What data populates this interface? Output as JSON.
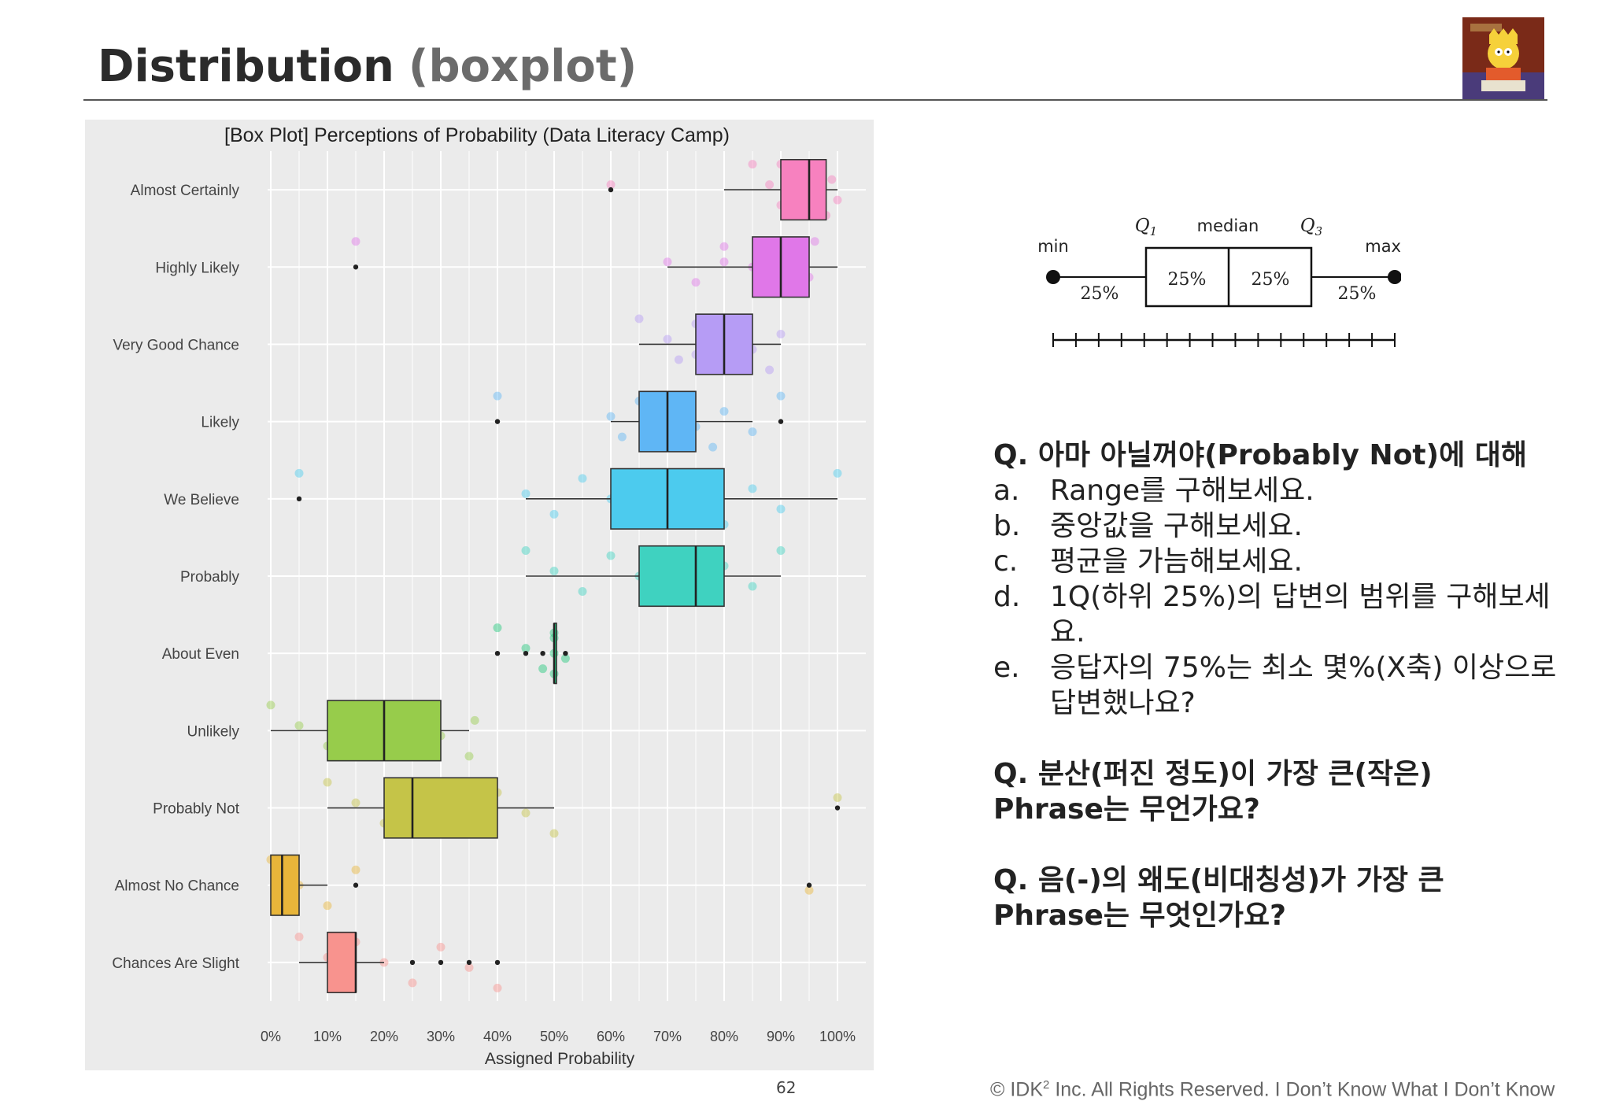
{
  "slide": {
    "title": "Distribution",
    "subtitle": "(boxplot)",
    "page_number": "62",
    "footer_prefix": "© IDK",
    "footer_sup": "2",
    "footer_suffix": " Inc. All Rights Reserved.  I Don’t Know What I Don’t Know"
  },
  "chart_data": {
    "type": "boxplot",
    "title": "[Box Plot] Perceptions of Probability (Data Literacy Camp)",
    "xlabel": "Assigned Probability",
    "ylabel": "",
    "xlim": [
      0,
      100
    ],
    "x_ticks": [
      "0%",
      "10%",
      "20%",
      "30%",
      "40%",
      "50%",
      "60%",
      "70%",
      "80%",
      "90%",
      "100%"
    ],
    "grid": true,
    "legend": "none",
    "categories": [
      {
        "name": "Almost Certainly",
        "color": "#f781bf",
        "whisker_low": 80,
        "q1": 90,
        "median": 95,
        "q3": 98,
        "whisker_high": 100,
        "outliers": [
          60
        ],
        "points": [
          85,
          88,
          90,
          92,
          94,
          95,
          96,
          97,
          98,
          99,
          100,
          90,
          60
        ]
      },
      {
        "name": "Highly Likely",
        "color": "#e077e8",
        "whisker_low": 70,
        "q1": 85,
        "median": 90,
        "q3": 95,
        "whisker_high": 100,
        "outliers": [
          15
        ],
        "points": [
          15,
          70,
          75,
          80,
          85,
          86,
          88,
          90,
          92,
          94,
          95,
          96,
          80
        ]
      },
      {
        "name": "Very Good Chance",
        "color": "#b69cf5",
        "whisker_low": 65,
        "q1": 75,
        "median": 80,
        "q3": 85,
        "whisker_high": 90,
        "outliers": [],
        "points": [
          65,
          70,
          72,
          75,
          78,
          80,
          82,
          85,
          88,
          90,
          75,
          80
        ]
      },
      {
        "name": "Likely",
        "color": "#5fb6f5",
        "whisker_low": 60,
        "q1": 65,
        "median": 70,
        "q3": 75,
        "whisker_high": 85,
        "outliers": [
          40,
          90
        ],
        "points": [
          40,
          60,
          62,
          65,
          68,
          70,
          72,
          75,
          78,
          80,
          85,
          90
        ]
      },
      {
        "name": "We Believe",
        "color": "#4ccbee",
        "whisker_low": 45,
        "q1": 60,
        "median": 70,
        "q3": 80,
        "whisker_high": 100,
        "outliers": [
          5
        ],
        "points": [
          5,
          45,
          50,
          55,
          60,
          65,
          70,
          75,
          80,
          85,
          90,
          100
        ]
      },
      {
        "name": "Probably",
        "color": "#3fd2c0",
        "whisker_low": 45,
        "q1": 65,
        "median": 75,
        "q3": 80,
        "whisker_high": 90,
        "outliers": [],
        "points": [
          45,
          50,
          55,
          60,
          65,
          68,
          70,
          75,
          78,
          80,
          85,
          90
        ]
      },
      {
        "name": "About Even",
        "color": "#1ec87a",
        "whisker_low": 50,
        "q1": 50,
        "median": 50,
        "q3": 50,
        "whisker_high": 50,
        "outliers": [
          40,
          45,
          48,
          52
        ],
        "points": [
          40,
          45,
          48,
          50,
          50,
          50,
          50,
          52
        ]
      },
      {
        "name": "Unlikely",
        "color": "#97cc4b",
        "whisker_low": 0,
        "q1": 10,
        "median": 20,
        "q3": 30,
        "whisker_high": 35,
        "outliers": [],
        "points": [
          0,
          5,
          10,
          15,
          20,
          22,
          25,
          30,
          35,
          36
        ]
      },
      {
        "name": "Probably Not",
        "color": "#c5c448",
        "whisker_low": 10,
        "q1": 20,
        "median": 25,
        "q3": 40,
        "whisker_high": 50,
        "outliers": [
          100
        ],
        "points": [
          10,
          15,
          20,
          25,
          30,
          35,
          40,
          45,
          50,
          100
        ]
      },
      {
        "name": "Almost No Chance",
        "color": "#e8b53a",
        "whisker_low": 0,
        "q1": 0,
        "median": 2,
        "q3": 5,
        "whisker_high": 10,
        "outliers": [
          15,
          95
        ],
        "points": [
          0,
          1,
          2,
          3,
          5,
          10,
          15,
          95
        ]
      },
      {
        "name": "Chances Are Slight",
        "color": "#f8938e",
        "whisker_low": 5,
        "q1": 10,
        "median": 15,
        "q3": 15,
        "whisker_high": 20,
        "outliers": [
          25,
          30,
          35,
          40
        ],
        "points": [
          5,
          10,
          12,
          15,
          20,
          25,
          30,
          35,
          40
        ]
      }
    ]
  },
  "schematic": {
    "label_min": "min",
    "label_q1": "Q",
    "label_q1_sub": "1",
    "label_median": "median",
    "label_q3": "Q",
    "label_q3_sub": "3",
    "label_max": "max",
    "pct_labels": [
      "25%",
      "25%",
      "25%",
      "25%"
    ]
  },
  "questions": {
    "q1_heading": "Q. 아마 아닐꺼야(Probably Not)에 대해",
    "q1_items": [
      {
        "letter": "a.",
        "text": "Range를 구해보세요."
      },
      {
        "letter": "b.",
        "text": "중앙값을 구해보세요."
      },
      {
        "letter": "c.",
        "text": "평균을 가늠해보세요."
      },
      {
        "letter": "d.",
        "text": "1Q(하위 25%)의 답변의 범위를 구해보세요."
      },
      {
        "letter": "e.",
        "text": "응답자의 75%는 최소 몇%(X축) 이상으로 답변했나요?"
      }
    ],
    "q2_line1": "Q. 분산(퍼진 정도)이 가장 큰(작은)",
    "q2_line2": "Phrase는 무언가요?",
    "q3_line1": "Q. 음(-)의 왜도(비대칭성)가 가장 큰",
    "q3_line2": "Phrase는 무엇인가요?"
  }
}
